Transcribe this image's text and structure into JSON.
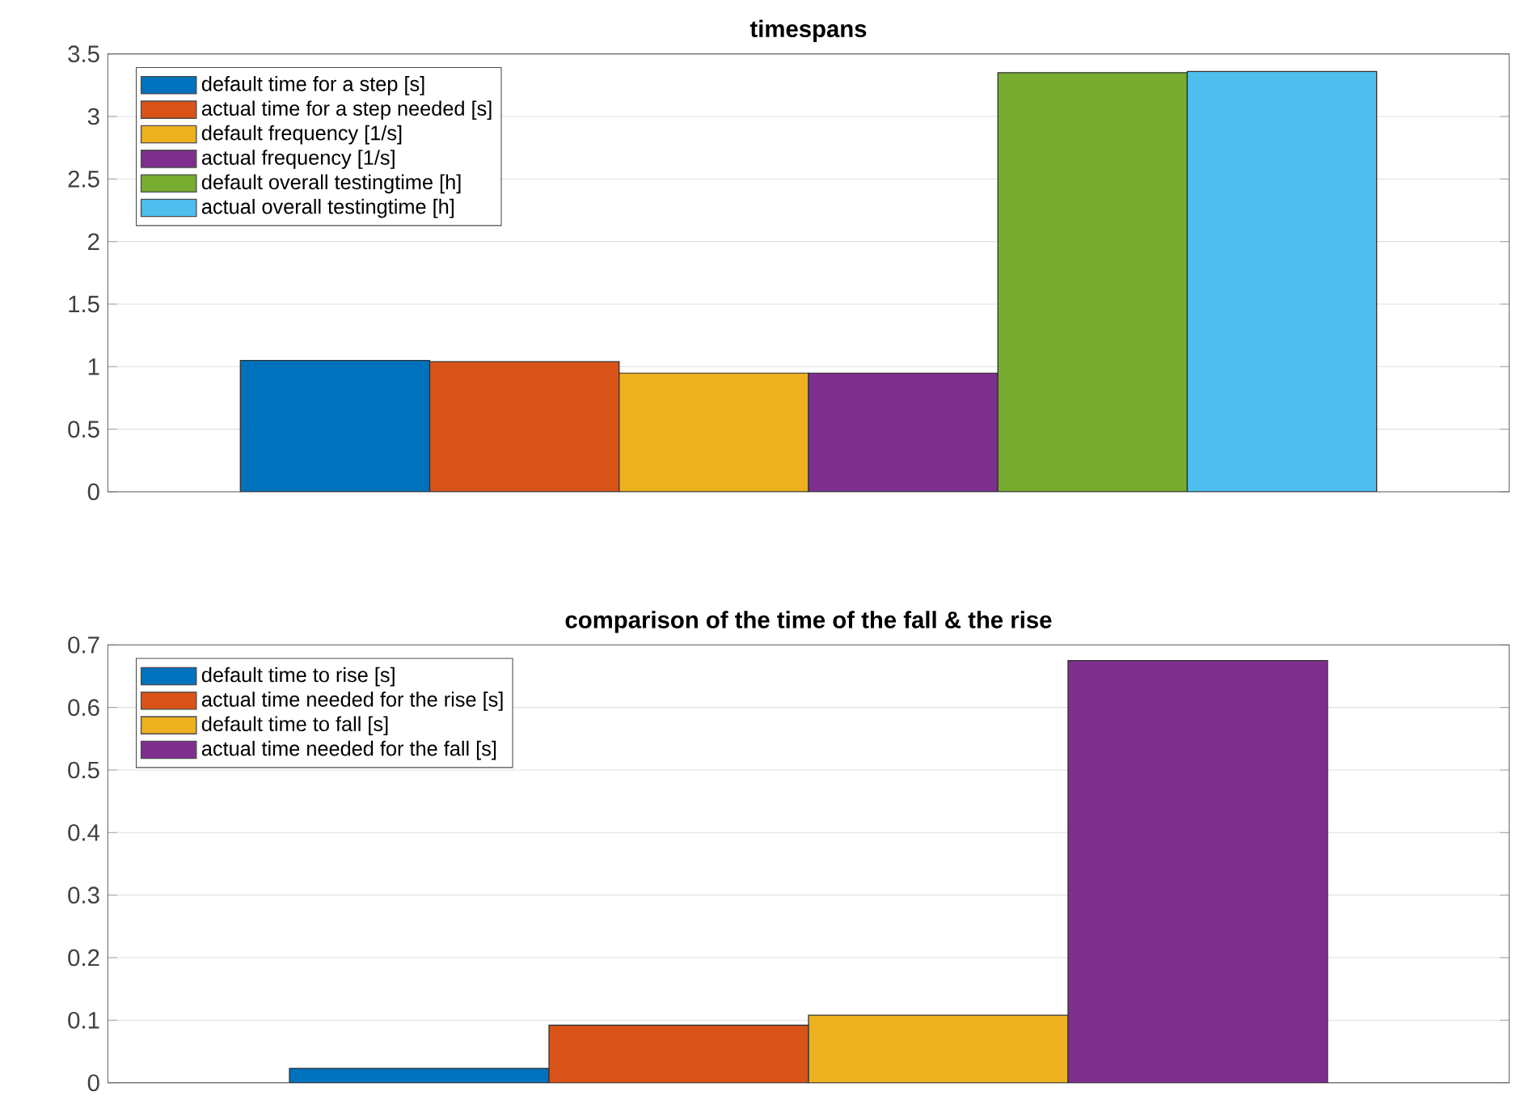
{
  "chart_data": [
    {
      "type": "bar",
      "title": "timespans",
      "categories": [
        null,
        null,
        null,
        null,
        null,
        null
      ],
      "series": [
        {
          "name": "default time for a step [s]",
          "color": "#0072bd",
          "values": [
            1.05,
            null,
            null,
            null,
            null,
            null
          ]
        },
        {
          "name": "actual time for a step needed [s]",
          "color": "#d95319",
          "values": [
            null,
            1.04,
            null,
            null,
            null,
            null
          ]
        },
        {
          "name": "default frequency [1/s]",
          "color": "#edb120",
          "values": [
            null,
            null,
            0.95,
            null,
            null,
            null
          ]
        },
        {
          "name": "actual frequency [1/s]",
          "color": "#7e2f8e",
          "values": [
            null,
            null,
            null,
            0.95,
            null,
            null
          ]
        },
        {
          "name": "default overall testingtime [h]",
          "color": "#77ac30",
          "values": [
            null,
            null,
            null,
            null,
            3.35,
            null
          ]
        },
        {
          "name": "actual overall testingtime [h]",
          "color": "#4dbeee",
          "values": [
            null,
            null,
            null,
            null,
            null,
            3.36
          ]
        }
      ],
      "ylim": [
        0,
        3.5
      ],
      "yticks": [
        0,
        0.5,
        1,
        1.5,
        2,
        2.5,
        3,
        3.5
      ],
      "grid": "y",
      "legend": "top left"
    },
    {
      "type": "bar",
      "title": "comparison of the time of the fall & the rise",
      "categories": [
        null,
        null,
        null,
        null
      ],
      "series": [
        {
          "name": "default time to rise [s]",
          "color": "#0072bd",
          "values": [
            0.023,
            null,
            null,
            null
          ]
        },
        {
          "name": "actual time needed for the rise [s]",
          "color": "#d95319",
          "values": [
            null,
            0.092,
            null,
            null
          ]
        },
        {
          "name": "default time to fall [s]",
          "color": "#edb120",
          "values": [
            null,
            null,
            0.108,
            null
          ]
        },
        {
          "name": "actual time needed for the fall [s]",
          "color": "#7e2f8e",
          "values": [
            null,
            null,
            null,
            0.675
          ]
        }
      ],
      "ylim": [
        0,
        0.7
      ],
      "yticks": [
        0,
        0.1,
        0.2,
        0.3,
        0.4,
        0.5,
        0.6,
        0.7
      ],
      "grid": "y",
      "legend": "top left"
    }
  ]
}
